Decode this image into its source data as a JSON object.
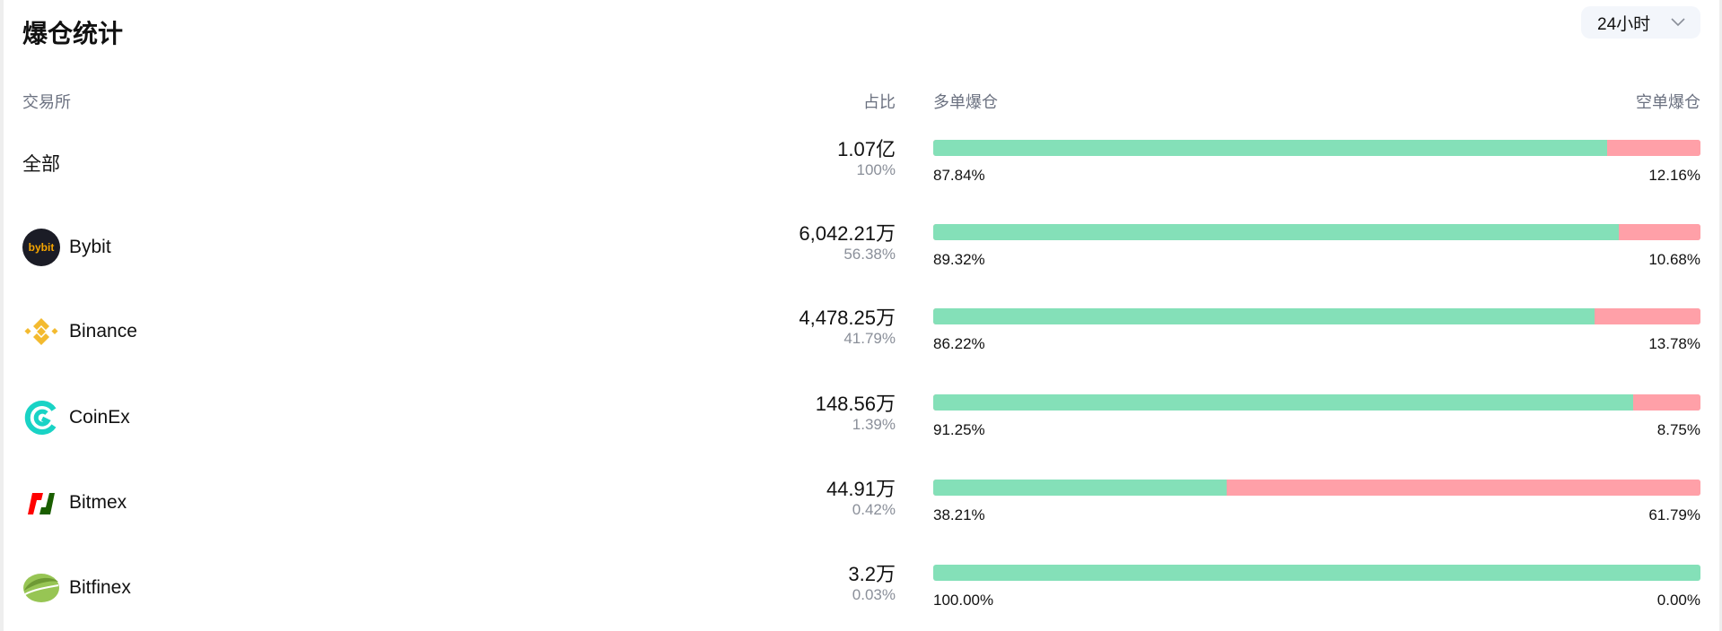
{
  "title": "爆仓统计",
  "timeframe": "24小时",
  "headers": {
    "exchange": "交易所",
    "share": "占比",
    "long": "多单爆仓",
    "short": "空单爆仓"
  },
  "colors": {
    "long": "#84e0b8",
    "short": "#ffa0a8"
  },
  "rows": [
    {
      "name": "全部",
      "amount": "1.07亿",
      "share": "100%",
      "long": "87.84%",
      "short": "12.16%",
      "long_value": 87.84,
      "icon": "none"
    },
    {
      "name": "Bybit",
      "amount": "6,042.21万",
      "share": "56.38%",
      "long": "89.32%",
      "short": "10.68%",
      "long_value": 89.32,
      "icon": "bybit-logo"
    },
    {
      "name": "Binance",
      "amount": "4,478.25万",
      "share": "41.79%",
      "long": "86.22%",
      "short": "13.78%",
      "long_value": 86.22,
      "icon": "binance-logo"
    },
    {
      "name": "CoinEx",
      "amount": "148.56万",
      "share": "1.39%",
      "long": "91.25%",
      "short": "8.75%",
      "long_value": 91.25,
      "icon": "coinex-logo"
    },
    {
      "name": "Bitmex",
      "amount": "44.91万",
      "share": "0.42%",
      "long": "38.21%",
      "short": "61.79%",
      "long_value": 38.21,
      "icon": "bitmex-logo"
    },
    {
      "name": "Bitfinex",
      "amount": "3.2万",
      "share": "0.03%",
      "long": "100.00%",
      "short": "0.00%",
      "long_value": 100,
      "icon": "bitfinex-logo"
    }
  ]
}
